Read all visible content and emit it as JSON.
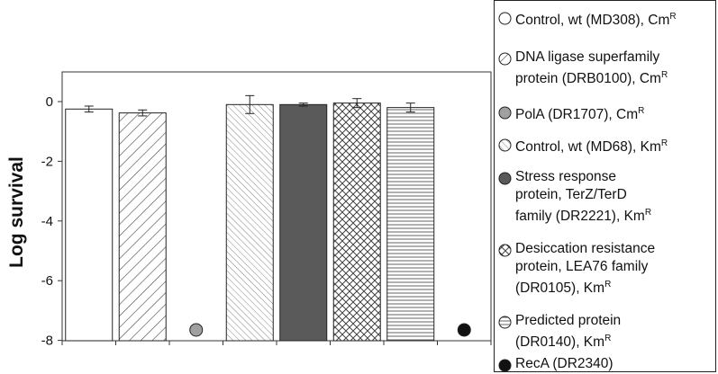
{
  "chart_data": {
    "type": "bar",
    "ylabel": "Log survival",
    "ylim": [
      -8,
      1
    ],
    "yticks": [
      0,
      -2,
      -4,
      -6,
      -8
    ],
    "grid": false,
    "legend_placement": "right",
    "categories": [
      "Control, wt (MD308), Cm",
      "DNA ligase superfamily protein (DRB0100), Cm",
      "PolA (DR1707), Cm",
      "Control, wt (MD68), Km",
      "Stress response protein, TerZ/TerD family (DR2221), Km",
      "Desiccation resistance protein, LEA76 family (DR0105), Km",
      "Predicted protein (DR0140), Km",
      "RecA (DR2340)"
    ],
    "values": [
      -0.25,
      -0.38,
      -7.65,
      -0.1,
      -0.1,
      -0.05,
      -0.2,
      -7.65
    ],
    "errors": [
      0.1,
      0.1,
      0,
      0.3,
      0.05,
      0.15,
      0.15,
      0
    ],
    "styles": [
      {
        "kind": "bar",
        "fill": "#ffffff",
        "pattern": "none"
      },
      {
        "kind": "bar",
        "fill": "#ffffff",
        "pattern": "diag-wide"
      },
      {
        "kind": "dot",
        "fill": "#a0a0a0",
        "pattern": "none"
      },
      {
        "kind": "bar",
        "fill": "#ffffff",
        "pattern": "diag-fine"
      },
      {
        "kind": "bar",
        "fill": "#5a5a5a",
        "pattern": "none"
      },
      {
        "kind": "bar",
        "fill": "#ffffff",
        "pattern": "crosshatch"
      },
      {
        "kind": "bar",
        "fill": "#ffffff",
        "pattern": "horizontal"
      },
      {
        "kind": "dot",
        "fill": "#111111",
        "pattern": "none"
      }
    ],
    "legend": [
      {
        "lines": [
          "Control, wt (MD308), Cm"
        ],
        "sup": "R"
      },
      {
        "lines": [
          "DNA ligase superfamily",
          "protein (DRB0100), Cm"
        ],
        "sup": "R"
      },
      {
        "lines": [
          "PolA (DR1707), Cm"
        ],
        "sup": "R"
      },
      {
        "lines": [
          "Control, wt (MD68), Km"
        ],
        "sup": "R"
      },
      {
        "lines": [
          "Stress response",
          "protein, TerZ/TerD",
          "family (DR2221), Km"
        ],
        "sup": "R"
      },
      {
        "lines": [
          "Desiccation resistance",
          "protein, LEA76 family",
          "(DR0105), Km"
        ],
        "sup": "R"
      },
      {
        "lines": [
          "Predicted protein",
          "(DR0140), Km"
        ],
        "sup": "R"
      },
      {
        "lines": [
          "RecA (DR2340)"
        ],
        "sup": ""
      }
    ]
  }
}
